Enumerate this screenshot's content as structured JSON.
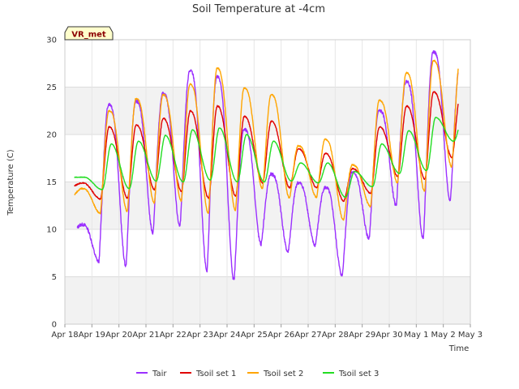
{
  "chart_data": {
    "type": "line",
    "title": "Soil Temperature at -4cm",
    "xlabel": "Time",
    "ylabel": "Temperature (C)",
    "ylim": [
      0,
      30
    ],
    "yticks": [
      0,
      5,
      10,
      15,
      20,
      25,
      30
    ],
    "xlim": [
      "Apr 18",
      "May 3"
    ],
    "xticks": [
      "Apr 18",
      "Apr 19",
      "Apr 20",
      "Apr 21",
      "Apr 22",
      "Apr 23",
      "Apr 24",
      "Apr 25",
      "Apr 26",
      "Apr 27",
      "Apr 28",
      "Apr 29",
      "Apr 30",
      "May 1",
      "May 2",
      "May 3"
    ],
    "grid": true,
    "legend_position": "bottom",
    "station_badge": "VR_met",
    "series_parameters_note": "daily min/max by date",
    "series": [
      {
        "name": "Tair",
        "color": "#9b30ff",
        "start": "Apr 18",
        "end": "May 2",
        "daily_min": [
          9.3,
          6.6,
          6.1,
          9.6,
          10.3,
          5.6,
          4.6,
          8.4,
          7.6,
          8.3,
          5.1,
          9.0,
          12.5,
          8.9,
          13.0
        ],
        "daily_max": [
          10.5,
          23.2,
          23.5,
          24.3,
          26.7,
          26.1,
          20.5,
          15.8,
          14.9,
          14.4,
          16.0,
          22.5,
          25.6,
          28.7,
          27.5
        ]
      },
      {
        "name": "Tsoil set 1",
        "color": "#e00000",
        "start": "Apr 18",
        "end": "May 2",
        "daily_min": [
          14.6,
          13.2,
          13.3,
          14.2,
          14.0,
          13.3,
          13.5,
          14.9,
          14.4,
          14.4,
          13.0,
          13.8,
          15.6,
          15.3,
          17.6
        ],
        "daily_max": [
          14.9,
          20.8,
          21.0,
          21.7,
          22.5,
          23.0,
          21.9,
          21.4,
          18.5,
          18.0,
          16.4,
          20.8,
          23.0,
          24.5,
          24.3
        ]
      },
      {
        "name": "Tsoil set 2",
        "color": "#ffa500",
        "start": "Apr 18",
        "end": "May 2",
        "daily_min": [
          13.6,
          11.7,
          11.9,
          12.8,
          13.0,
          11.7,
          12.0,
          14.3,
          13.3,
          13.4,
          11.0,
          12.4,
          14.9,
          14.0,
          16.6
        ],
        "daily_max": [
          14.3,
          22.5,
          23.8,
          24.2,
          25.3,
          27.0,
          24.9,
          24.2,
          18.8,
          19.5,
          16.8,
          23.6,
          26.5,
          27.8,
          28.2
        ]
      },
      {
        "name": "Tsoil set 3",
        "color": "#22dd22",
        "start": "Apr 18",
        "end": "May 2",
        "daily_min": [
          15.5,
          14.2,
          14.3,
          15.1,
          15.0,
          15.2,
          15.0,
          15.0,
          15.1,
          14.9,
          13.4,
          14.5,
          15.9,
          16.2,
          19.3
        ],
        "daily_max": [
          15.5,
          19.0,
          19.3,
          19.9,
          20.5,
          20.7,
          20.0,
          19.3,
          17.0,
          17.0,
          16.1,
          19.0,
          20.4,
          21.8,
          21.7
        ]
      }
    ]
  }
}
